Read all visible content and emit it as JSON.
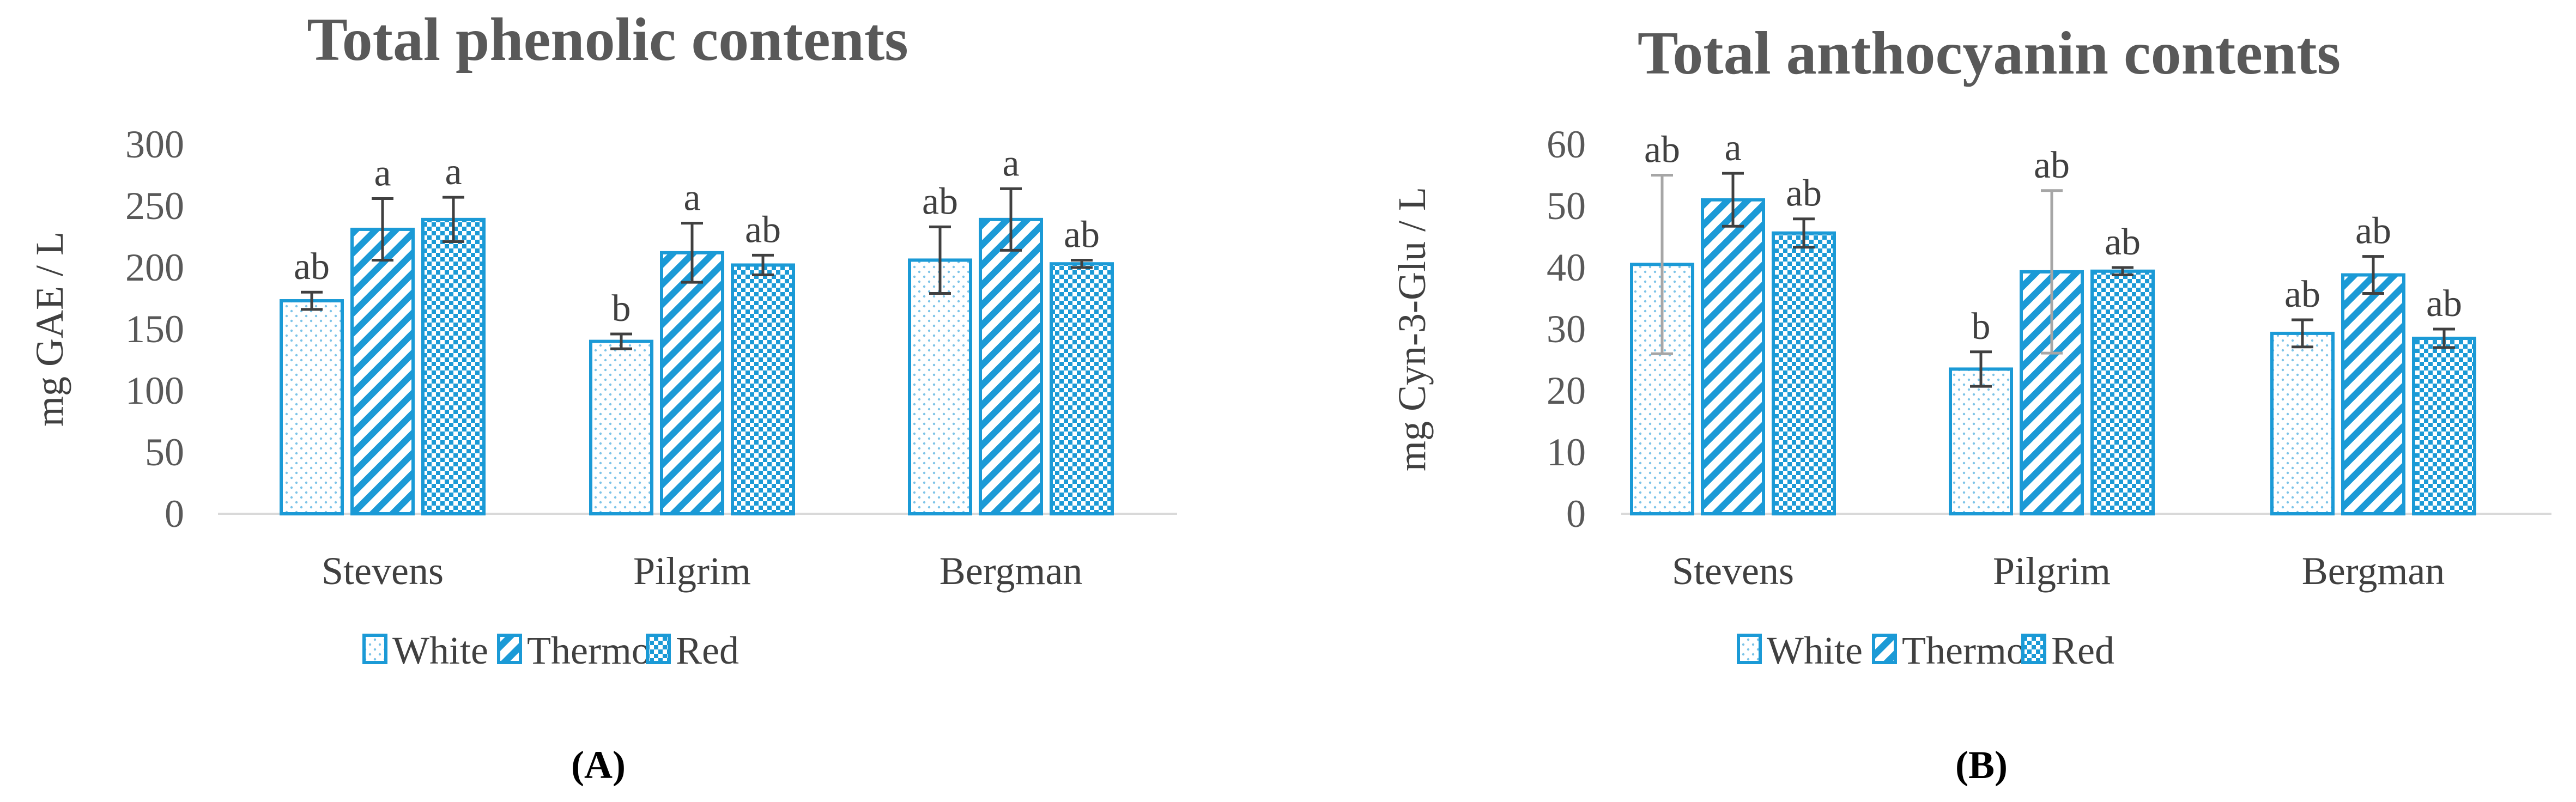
{
  "colors": {
    "series": "#1b9ad6",
    "axis": "#d9d9d9",
    "error": "#404040",
    "error_light": "#a6a6a6"
  },
  "chart_data": [
    {
      "type": "bar",
      "panel_label": "(A)",
      "title": "Total phenolic contents",
      "ylabel": "mg GAE / L",
      "xlabel": "",
      "ylim": [
        0,
        300
      ],
      "yticks": [
        0,
        50,
        100,
        150,
        200,
        250,
        300
      ],
      "categories": [
        "Stevens",
        "Pilgrim",
        "Bergman"
      ],
      "legend": {
        "position": "bottom",
        "labels": [
          "White",
          "Thermo",
          "Red"
        ]
      },
      "series": [
        {
          "name": "White",
          "pattern": "dots",
          "values": [
            173,
            140,
            206
          ],
          "errors": [
            7,
            6,
            27
          ],
          "labels": [
            "ab",
            "b",
            "ab"
          ]
        },
        {
          "name": "Thermo",
          "pattern": "diagonal",
          "values": [
            231,
            212,
            239
          ],
          "errors": [
            25,
            24,
            25
          ],
          "labels": [
            "a",
            "a",
            "a"
          ]
        },
        {
          "name": "Red",
          "pattern": "checker",
          "values": [
            239,
            202,
            203
          ],
          "errors": [
            18,
            8,
            3
          ],
          "labels": [
            "a",
            "ab",
            "ab"
          ]
        }
      ]
    },
    {
      "type": "bar",
      "panel_label": "(B)",
      "title": "Total anthocyanin contents",
      "ylabel": "mg Cyn-3-Glu / L",
      "xlabel": "",
      "ylim": [
        0,
        60
      ],
      "yticks": [
        0,
        10,
        20,
        30,
        40,
        50,
        60
      ],
      "categories": [
        "Stevens",
        "Pilgrim",
        "Bergman"
      ],
      "legend": {
        "position": "bottom",
        "labels": [
          "White",
          "Thermo",
          "Red"
        ]
      },
      "series": [
        {
          "name": "White",
          "pattern": "dots",
          "values": [
            40.5,
            23.5,
            29.3
          ],
          "errors": [
            14.5,
            2.8,
            2.2
          ],
          "labels": [
            "ab",
            "b",
            "ab"
          ]
        },
        {
          "name": "Thermo",
          "pattern": "diagonal",
          "values": [
            51,
            39.3,
            38.8
          ],
          "errors": [
            4.3,
            13.2,
            3
          ],
          "labels": [
            "a",
            "ab",
            "ab"
          ]
        },
        {
          "name": "Red",
          "pattern": "checker",
          "values": [
            45.6,
            39.4,
            28.5
          ],
          "errors": [
            2.3,
            0.6,
            1.5
          ],
          "labels": [
            "ab",
            "ab",
            "ab"
          ]
        }
      ]
    }
  ]
}
